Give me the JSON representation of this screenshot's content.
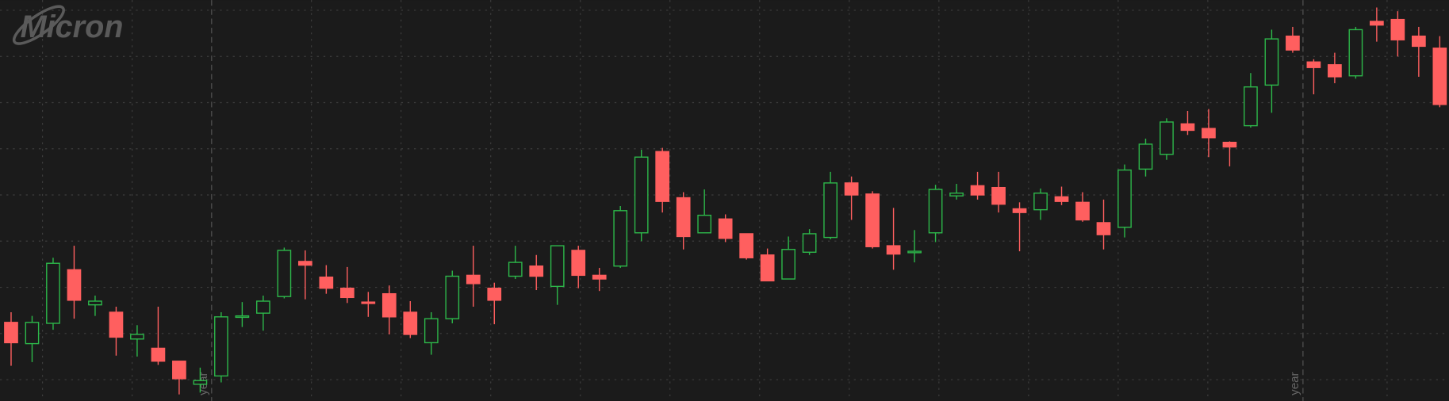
{
  "chart_data": {
    "type": "candlestick",
    "logo": "Micron",
    "annotations": [
      "year",
      "year"
    ],
    "ylim": [
      2,
      436
    ],
    "yticks": [
      25,
      75,
      125,
      175,
      225,
      275,
      325,
      375,
      425
    ],
    "grid": true,
    "up_color": "#2db84a",
    "down_color": "#ff5f5f",
    "open": [
      87,
      64,
      86,
      144,
      106,
      98,
      69,
      59,
      45,
      20,
      29,
      93,
      97,
      115,
      153,
      136,
      124,
      109,
      118,
      98,
      65,
      91,
      138,
      124,
      137,
      148,
      126,
      165,
      138,
      148,
      184,
      272,
      222,
      184,
      199,
      183,
      160,
      134,
      163,
      179,
      238,
      226,
      170,
      163,
      184,
      224,
      235,
      233,
      210,
      209,
      223,
      217,
      195,
      190,
      253,
      269,
      302,
      297,
      282,
      300,
      344,
      397,
      369,
      366,
      354,
      413,
      415,
      397,
      384
    ],
    "high": [
      98,
      94,
      157,
      170,
      116,
      104,
      84,
      104,
      45,
      38,
      98,
      109,
      116,
      168,
      165,
      149,
      147,
      120,
      127,
      110,
      98,
      143,
      170,
      130,
      170,
      160,
      170,
      170,
      146,
      213,
      274,
      276,
      228,
      231,
      204,
      183,
      167,
      180,
      188,
      250,
      245,
      229,
      211,
      187,
      236,
      237,
      250,
      250,
      217,
      232,
      234,
      228,
      220,
      258,
      286,
      308,
      316,
      318,
      283,
      357,
      404,
      407,
      372,
      379,
      407,
      428,
      424,
      407,
      397
    ],
    "low": [
      40,
      44,
      79,
      91,
      94,
      51,
      50,
      41,
      9,
      11,
      22,
      82,
      78,
      113,
      112,
      118,
      108,
      93,
      74,
      70,
      52,
      86,
      104,
      85,
      134,
      122,
      106,
      124,
      121,
      146,
      175,
      206,
      166,
      184,
      174,
      155,
      132,
      134,
      160,
      177,
      198,
      167,
      144,
      152,
      174,
      220,
      220,
      206,
      164,
      198,
      214,
      196,
      166,
      179,
      245,
      263,
      290,
      266,
      256,
      298,
      314,
      379,
      334,
      346,
      351,
      391,
      375,
      353,
      320
    ],
    "close": [
      65,
      87,
      151,
      111,
      110,
      71,
      74,
      45,
      26,
      24,
      93,
      94,
      110,
      165,
      149,
      124,
      114,
      108,
      93,
      74,
      91,
      137,
      129,
      111,
      152,
      137,
      170,
      138,
      134,
      208,
      266,
      218,
      180,
      203,
      178,
      157,
      132,
      166,
      183,
      238,
      225,
      169,
      161,
      164,
      231,
      227,
      225,
      215,
      206,
      227,
      218,
      198,
      182,
      252,
      280,
      304,
      295,
      287,
      277,
      342,
      394,
      382,
      363,
      353,
      404,
      409,
      393,
      386,
      323
    ]
  }
}
